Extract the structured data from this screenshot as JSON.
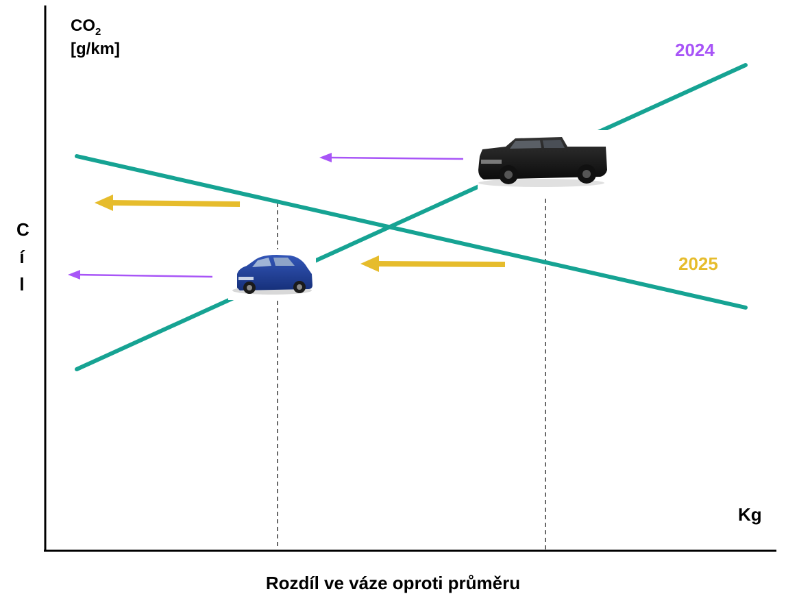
{
  "y_axis": {
    "label_co2": "CO",
    "label_sub": "2",
    "label_unit": "[g/km]",
    "side_label": [
      "C",
      "í",
      "l"
    ]
  },
  "x_axis": {
    "end_label": "Kg",
    "title": "Rozdíl ve váze oproti průměru"
  },
  "series": [
    {
      "name": "2024",
      "color": "#a855f7"
    },
    {
      "name": "2025",
      "color": "#e6bc2c"
    }
  ],
  "colors": {
    "line": "#16a393",
    "arrow_2024": "#a855f7",
    "arrow_2025": "#e6bc2c",
    "axis": "#000000",
    "guide": "#444444"
  },
  "icons": {
    "light_vehicle": "small-hatchback-car-icon",
    "heavy_vehicle": "pickup-truck-icon"
  }
}
